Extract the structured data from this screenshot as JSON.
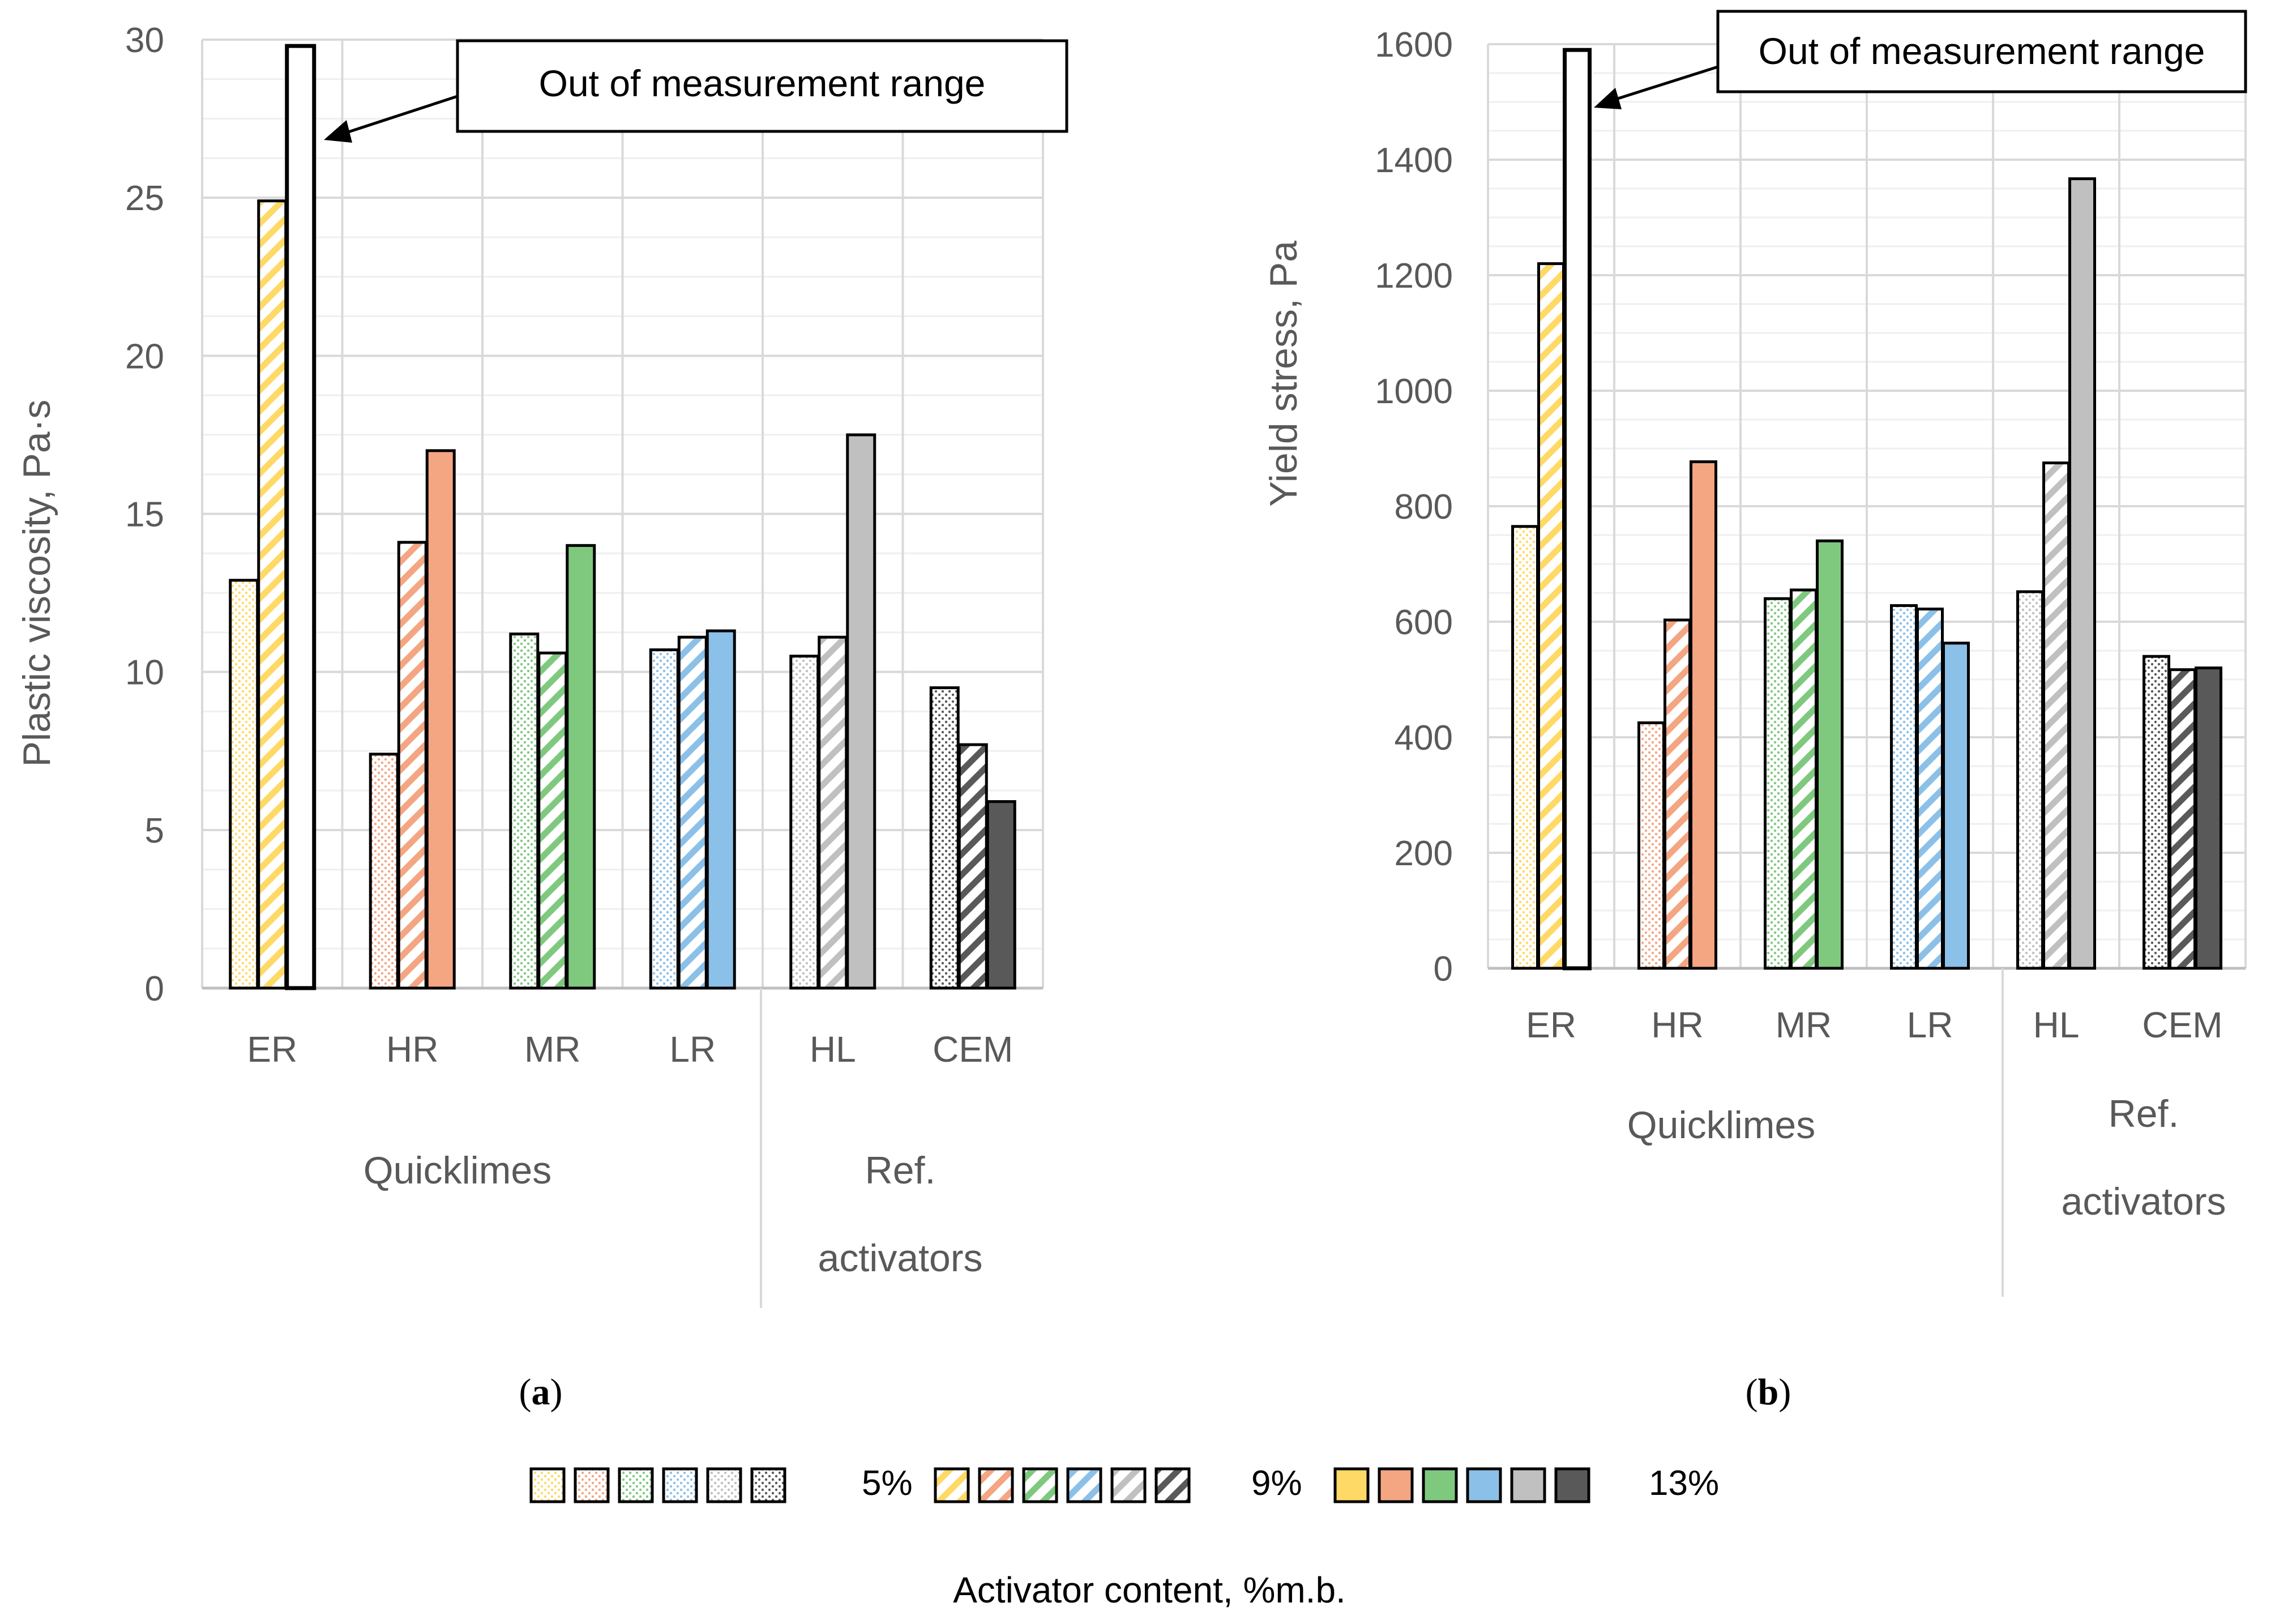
{
  "patterns": {
    "5%": "dots",
    "9%": "stripes",
    "13%": "solid"
  },
  "legend": {
    "title": "Activator content, %m.b.",
    "levels": [
      "5%",
      "9%",
      "13%"
    ],
    "colors": [
      "#FFD966",
      "#F4A582",
      "#7FC97F",
      "#8BC0E8",
      "#C0C0C0",
      "#595959"
    ]
  },
  "chart_data": [
    {
      "type": "bar",
      "panel_label": "a",
      "ylabel": "Plastic viscosity, Pa·s",
      "ylim": [
        0,
        30
      ],
      "yticks": [
        0,
        5,
        10,
        15,
        20,
        25,
        30
      ],
      "categories": [
        "ER",
        "HR",
        "MR",
        "LR",
        "HL",
        "CEM"
      ],
      "groups": [
        {
          "label": "Quicklimes",
          "categories": [
            "ER",
            "HR",
            "MR",
            "LR"
          ]
        },
        {
          "label": "Ref. activators",
          "line1": "Ref.",
          "line2": "activators",
          "categories": [
            "HL",
            "CEM"
          ]
        }
      ],
      "colors": [
        "#FFD966",
        "#F4A582",
        "#7FC97F",
        "#8BC0E8",
        "#C0C0C0",
        "#595959"
      ],
      "series": [
        {
          "name": "5%",
          "values": [
            12.9,
            7.4,
            11.2,
            10.7,
            10.5,
            9.5
          ]
        },
        {
          "name": "9%",
          "values": [
            24.9,
            14.1,
            10.6,
            11.1,
            11.1,
            7.7
          ]
        },
        {
          "name": "13%",
          "values": [
            29.8,
            17.0,
            14.0,
            11.3,
            17.5,
            5.9
          ]
        }
      ],
      "out_of_range": [
        {
          "category": "ER",
          "series": "13%"
        }
      ],
      "annotation": "Out of measurement range"
    },
    {
      "type": "bar",
      "panel_label": "b",
      "ylabel": "Yield stress, Pa",
      "ylim": [
        0,
        1600
      ],
      "yticks": [
        0,
        200,
        400,
        600,
        800,
        1000,
        1200,
        1400,
        1600
      ],
      "categories": [
        "ER",
        "HR",
        "MR",
        "LR",
        "HL",
        "CEM"
      ],
      "groups": [
        {
          "label": "Quicklimes",
          "categories": [
            "ER",
            "HR",
            "MR",
            "LR"
          ]
        },
        {
          "label": "Ref. activators",
          "line1": "Ref.",
          "line2": "activators",
          "categories": [
            "HL",
            "CEM"
          ]
        }
      ],
      "colors": [
        "#FFD966",
        "#F4A582",
        "#7FC97F",
        "#8BC0E8",
        "#C0C0C0",
        "#595959"
      ],
      "series": [
        {
          "name": "5%",
          "values": [
            765,
            425,
            640,
            628,
            652,
            540
          ]
        },
        {
          "name": "9%",
          "values": [
            1220,
            603,
            655,
            622,
            875,
            517
          ]
        },
        {
          "name": "13%",
          "values": [
            1590,
            877,
            740,
            563,
            1367,
            520
          ]
        }
      ],
      "out_of_range": [
        {
          "category": "ER",
          "series": "13%"
        }
      ],
      "annotation": "Out of measurement range"
    }
  ]
}
